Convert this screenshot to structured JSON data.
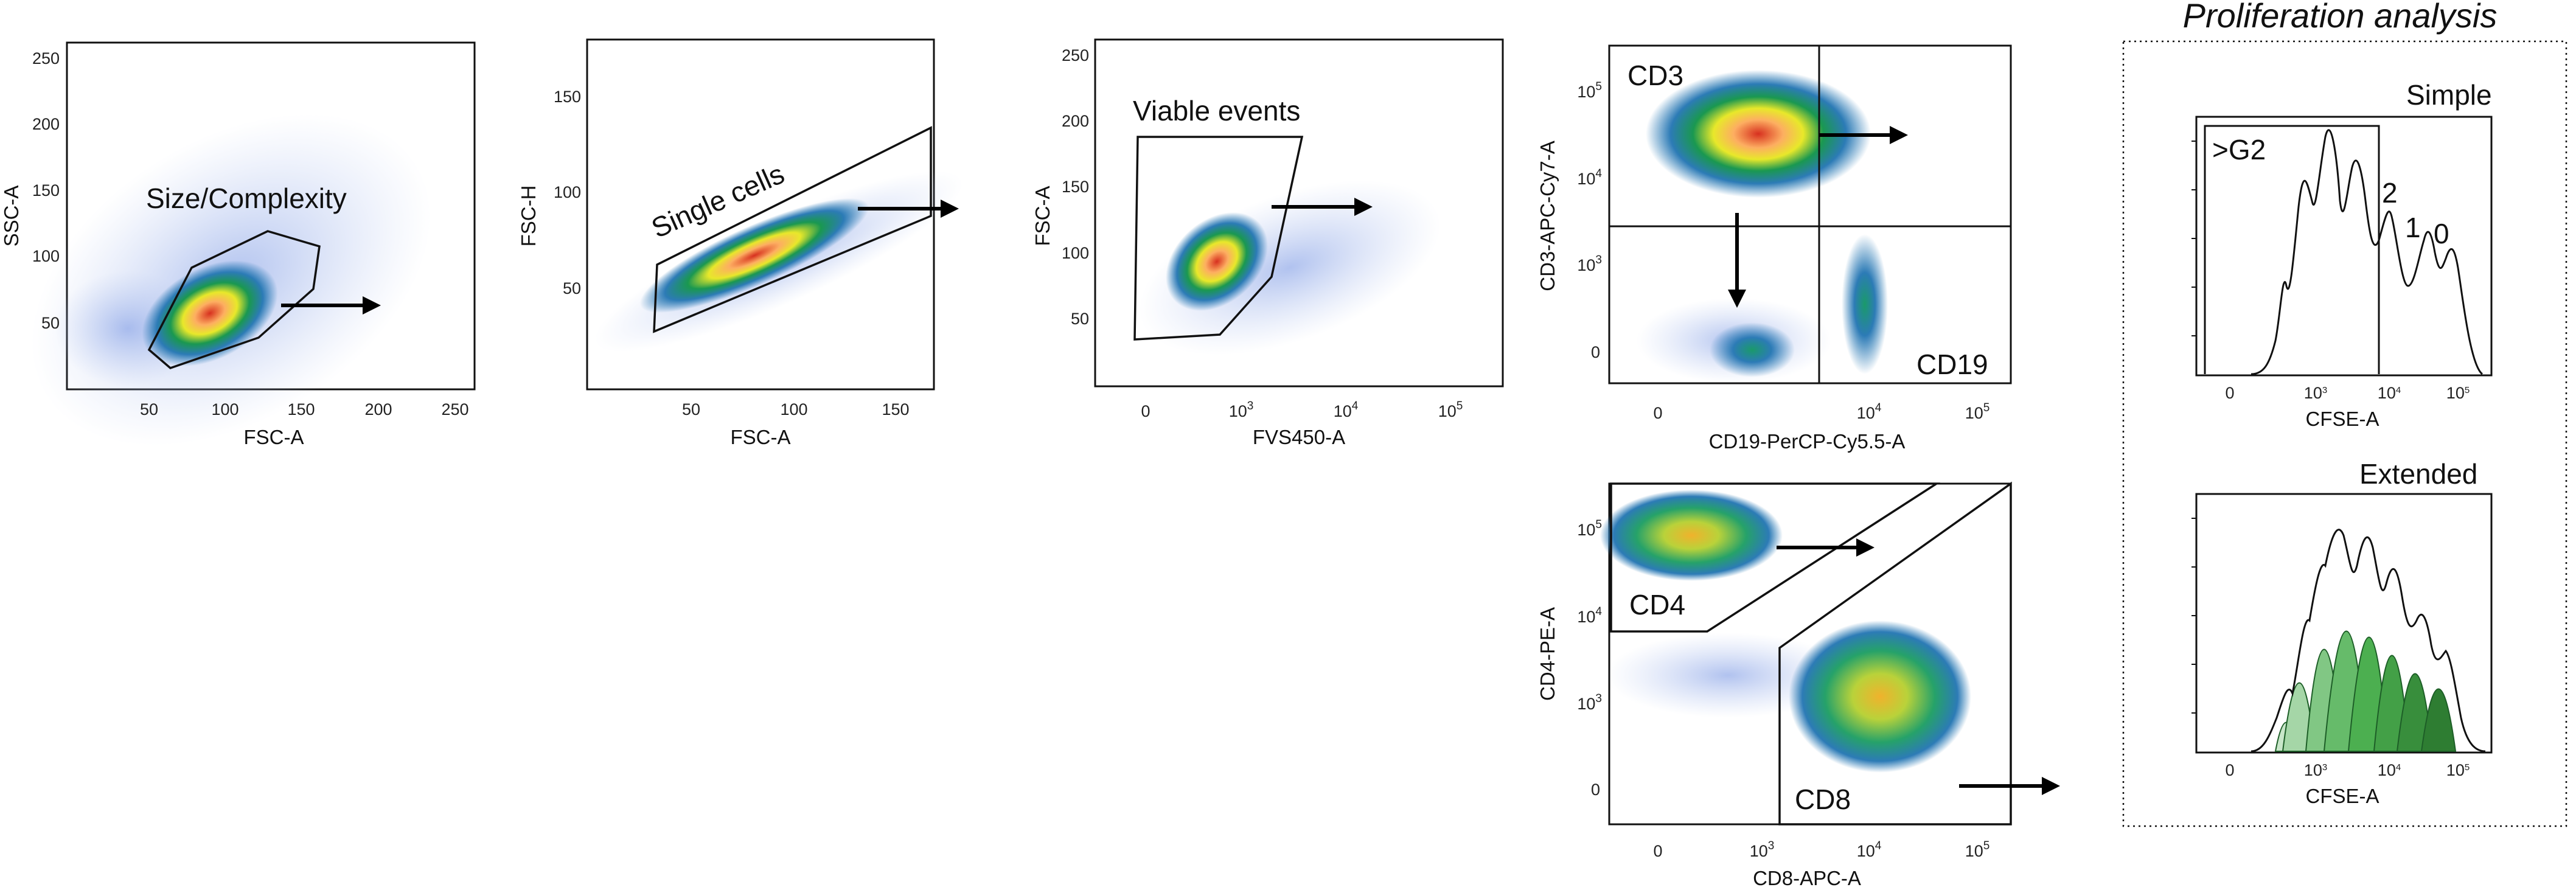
{
  "panels": {
    "size": {
      "gate": "Size/Complexity",
      "xlabel": "FSC-A",
      "ylabel": "SSC-A",
      "xticks": [
        "50",
        "100",
        "150",
        "200",
        "250"
      ],
      "yticks": [
        "250",
        "200",
        "150",
        "100",
        "50"
      ]
    },
    "single": {
      "gate": "Single cells",
      "xlabel": "FSC-A",
      "ylabel": "FSC-H",
      "xticks": [
        "50",
        "100",
        "150"
      ],
      "yticks": [
        "150",
        "100",
        "50"
      ]
    },
    "viable": {
      "gate": "Viable events",
      "xlabel": "FVS450-A",
      "ylabel": "FSC-A",
      "xticks": [
        "0",
        "10",
        "10",
        "10"
      ],
      "xtick_exponents": [
        "",
        "3",
        "4",
        "5"
      ],
      "yticks": [
        "250",
        "200",
        "150",
        "100",
        "50"
      ]
    },
    "cd3": {
      "gate_top": "CD3",
      "gate_bottom": "CD19",
      "xlabel": "CD19-PerCP-Cy5.5-A",
      "ylabel": "CD3-APC-Cy7-A",
      "xticks": [
        "0",
        "10",
        "10"
      ],
      "xtick_exponents": [
        "",
        "4",
        "5"
      ],
      "yticks": [
        "10",
        "10",
        "10",
        "0"
      ],
      "ytick_exponents": [
        "5",
        "4",
        "3",
        ""
      ]
    },
    "cd4": {
      "gate_top": "CD4",
      "gate_bottom": "CD8",
      "xlabel": "CD8-APC-A",
      "ylabel": "CD4-PE-A",
      "xticks": [
        "0",
        "10",
        "10",
        "10"
      ],
      "xtick_exponents": [
        "",
        "3",
        "4",
        "5"
      ],
      "yticks": [
        "10",
        "10",
        "10",
        "0"
      ],
      "ytick_exponents": [
        "5",
        "4",
        "3",
        ""
      ]
    }
  },
  "proliferation": {
    "title": "Proliferation analysis",
    "simple": {
      "title": "Simple",
      "xlabel": "CFSE-A",
      "gate": ">G2",
      "peaks": [
        "2",
        "1",
        "0"
      ],
      "xticks": [
        "0",
        "10",
        "10",
        "10"
      ],
      "xtick_exponents": [
        "",
        "3",
        "4",
        "5"
      ]
    },
    "extended": {
      "title": "Extended",
      "xlabel": "CFSE-A",
      "xticks": [
        "0",
        "10",
        "10",
        "10"
      ],
      "xtick_exponents": [
        "",
        "3",
        "4",
        "5"
      ]
    }
  },
  "colors": {
    "dense": "#d7301f",
    "mid": "#1a9850",
    "sparse": "#2166ac",
    "peak_fill": "#2e9b3c"
  }
}
